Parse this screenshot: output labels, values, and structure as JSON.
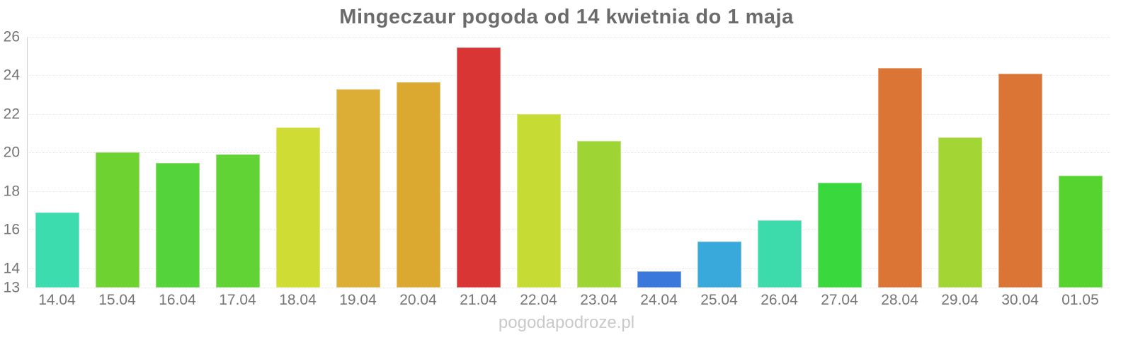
{
  "header": {
    "title": "Mingeczaur pogoda od 14 kwietnia do 1 maja"
  },
  "watermark": {
    "text": "pogodapodroze.pl"
  },
  "colors": {
    "title_text": "#6b6b6b",
    "tick_text": "#757575",
    "gridline": "#e7e7e7",
    "axis_line": "#cccccc",
    "watermark_text": "#c9c9c9",
    "background": "#ffffff"
  },
  "chart_data": {
    "type": "bar",
    "title": "Mingeczaur pogoda od 14 kwietnia do 1 maja",
    "xlabel": "",
    "ylabel": "",
    "ylim": [
      13,
      26
    ],
    "yticks": [
      13,
      14,
      16,
      18,
      20,
      22,
      24,
      26
    ],
    "grid": "horizontal-dotted",
    "legend": "none",
    "categories": [
      "14.04",
      "15.04",
      "16.04",
      "17.04",
      "18.04",
      "19.04",
      "20.04",
      "21.04",
      "22.04",
      "23.04",
      "24.04",
      "25.04",
      "26.04",
      "27.04",
      "28.04",
      "29.04",
      "30.04",
      "01.05"
    ],
    "values": [
      16.9,
      20.0,
      19.45,
      19.9,
      21.3,
      23.3,
      23.65,
      25.45,
      22.0,
      20.6,
      13.85,
      15.4,
      16.5,
      18.45,
      24.4,
      20.8,
      24.1,
      18.8
    ],
    "bar_colors": [
      "#3DDCAE",
      "#6ED331",
      "#55D33A",
      "#62D334",
      "#CEDC33",
      "#DDAE35",
      "#DBA930",
      "#D93534",
      "#C6DB33",
      "#9ED433",
      "#3B78DB",
      "#39A8DB",
      "#3DDBAB",
      "#39D83C",
      "#DB7535",
      "#A3D634",
      "#DB7535",
      "#56D32F"
    ]
  }
}
